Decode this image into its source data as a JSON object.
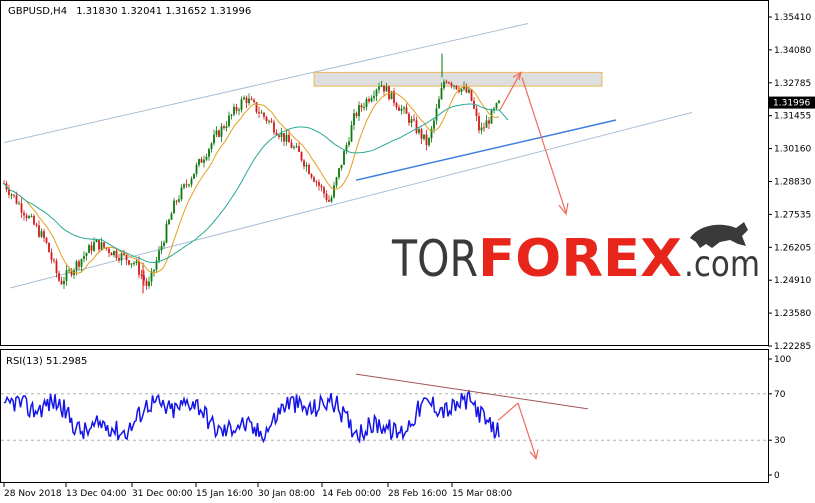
{
  "chart_data": [
    {
      "type": "candlestick",
      "symbol_label": "GBPUSD,H4",
      "ohlc": "1.31830 1.32041 1.31652 1.31996",
      "price_ticks": [
        "1.35410",
        "1.34080",
        "1.32785",
        "1.31455",
        "1.30160",
        "1.28830",
        "1.27535",
        "1.26205",
        "1.24910",
        "1.23580",
        "1.22285"
      ],
      "current_price": "1.31996",
      "ylim": [
        1.22285,
        1.3541
      ],
      "x_ticks": [
        "28 Nov 2018",
        "13 Dec 04:00",
        "31 Dec 00:00",
        "15 Jan 16:00",
        "30 Jan 08:00",
        "14 Feb 00:00",
        "28 Feb 16:00",
        "15 Mar 08:00"
      ],
      "watermark": {
        "prefix": "TOR",
        "brand": "FOREX",
        "suffix": ".com"
      },
      "trend_notes": "ascending price channel, resistance zone near 1.3300, forecast arrows up then down",
      "key_prices": [
        {
          "label": "open",
          "value": 1.29
        },
        {
          "label": "low",
          "value": 1.2438
        },
        {
          "label": "high",
          "value": 1.3395
        },
        {
          "label": "close",
          "value": 1.31996
        }
      ]
    },
    {
      "type": "line",
      "indicator_label": "RSI(13) 51.2985",
      "y_ticks": [
        "100",
        "70",
        "30",
        "0"
      ],
      "ylim": [
        0,
        100
      ],
      "levels": [
        70,
        30
      ]
    }
  ],
  "colors": {
    "bull": "#0b7a0b",
    "bear": "#d11a1a",
    "ma_fast": "#e0a020",
    "ma_slow": "#2aa898",
    "channel": "#a9bfd6",
    "trendline": "#3d7fe0",
    "forecast": "#f06a5a",
    "rsi": "#1414e6",
    "rsi_trend": "#a25454",
    "zone_fill": "#dedede",
    "zone_stroke": "#f0b860",
    "price_box": "#000000",
    "watermark_dark": "#3a3a3a",
    "watermark_red": "#e8251b"
  },
  "icons": {
    "logo": "bull-icon"
  }
}
